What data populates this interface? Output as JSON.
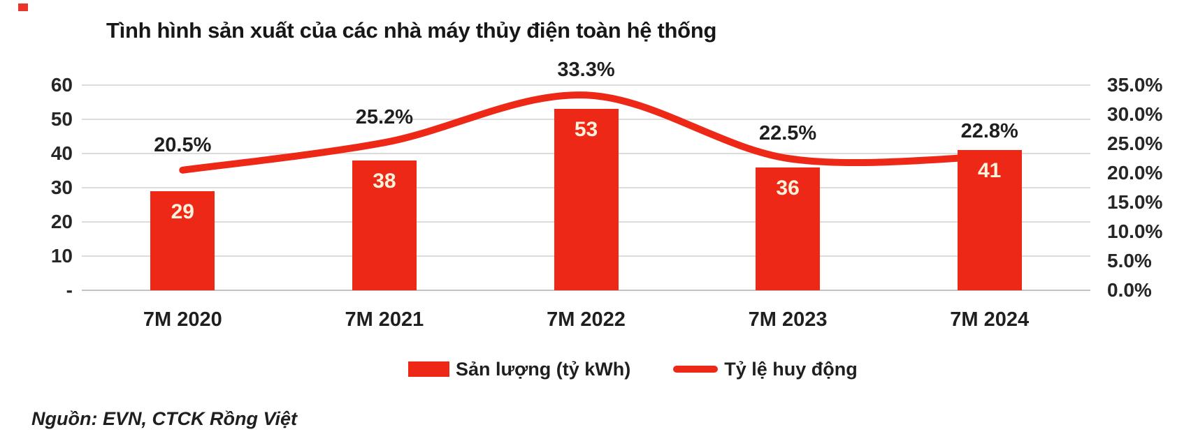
{
  "decor": {
    "corner_mark_color": "#e8362a"
  },
  "source_note": "Nguồn: EVN, CTCK Rồng Việt",
  "chart_data": {
    "type": "bar",
    "subtype": "bar+line combo, dual axis",
    "title": "Tình hình sản xuất của các nhà máy thủy điện toàn hệ thống",
    "categories": [
      "7M 2020",
      "7M 2021",
      "7M 2022",
      "7M 2023",
      "7M 2024"
    ],
    "series": [
      {
        "name": "Sản lượng (tỷ kWh)",
        "type": "bar",
        "axis": "left",
        "values": [
          29,
          38,
          53,
          36,
          41
        ],
        "data_labels": [
          "29",
          "38",
          "53",
          "36",
          "41"
        ],
        "color": "#ee2817",
        "label_color": "#fdf3dc"
      },
      {
        "name": "Tỷ lệ huy động",
        "type": "line",
        "axis": "right",
        "values": [
          20.5,
          25.2,
          33.3,
          22.5,
          22.8
        ],
        "data_labels": [
          "20.5%",
          "25.2%",
          "33.3%",
          "22.5%",
          "22.8%"
        ],
        "color": "#ee2817",
        "label_color": "#1f1f1f"
      }
    ],
    "left_axis": {
      "min": 0,
      "max": 60,
      "ticks": [
        {
          "value": 60,
          "label": "60"
        },
        {
          "value": 50,
          "label": "50"
        },
        {
          "value": 40,
          "label": "40"
        },
        {
          "value": 30,
          "label": "30"
        },
        {
          "value": 20,
          "label": "20"
        },
        {
          "value": 10,
          "label": "10"
        },
        {
          "value": 0,
          "label": "-"
        }
      ]
    },
    "right_axis": {
      "min": 0,
      "max": 35,
      "ticks": [
        {
          "value": 35,
          "label": "35.0%"
        },
        {
          "value": 30,
          "label": "30.0%"
        },
        {
          "value": 25,
          "label": "25.0%"
        },
        {
          "value": 20,
          "label": "20.0%"
        },
        {
          "value": 15,
          "label": "15.0%"
        },
        {
          "value": 10,
          "label": "10.0%"
        },
        {
          "value": 5,
          "label": "5.0%"
        },
        {
          "value": 0,
          "label": "0.0%"
        }
      ]
    },
    "grid": true,
    "gridline_color": "#dcdcdc",
    "axis_line_color": "#c2c2c2",
    "legend_position": "bottom"
  }
}
